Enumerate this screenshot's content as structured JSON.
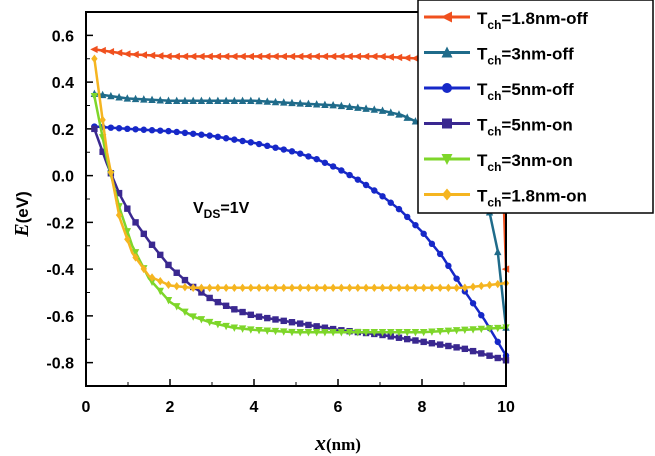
{
  "chart_data": {
    "type": "line",
    "xlabel": {
      "main": "x",
      "unit": "(nm)"
    },
    "ylabel": {
      "main": "E",
      "unit": "(eV)"
    },
    "xlim": [
      0,
      10
    ],
    "ylim": [
      -0.9,
      0.7
    ],
    "xticks": [
      0,
      2,
      4,
      6,
      8,
      10
    ],
    "yticks": [
      -0.8,
      -0.6,
      -0.4,
      -0.2,
      0.0,
      0.2,
      0.4,
      0.6
    ],
    "ytick_labels": [
      "-0.8",
      "-0.6",
      "-0.4",
      "-0.2",
      "0.0",
      "0.2",
      "0.4",
      "0.6"
    ],
    "annotation": {
      "main": "V",
      "sub": "DS",
      "rest": "=1V"
    },
    "legend_position": "top-right",
    "series": [
      {
        "name": {
          "main": "T",
          "sub": "ch",
          "rest": "=1.8nm-off"
        },
        "color": "#f0501e",
        "marker": "triangle-left",
        "x": [
          0.2,
          1,
          2,
          3,
          4,
          5,
          6,
          7,
          8,
          9,
          9.4,
          9.7,
          9.85,
          10
        ],
        "y": [
          0.54,
          0.52,
          0.51,
          0.51,
          0.51,
          0.51,
          0.51,
          0.51,
          0.5,
          0.48,
          0.46,
          0.44,
          0.4,
          -0.4
        ]
      },
      {
        "name": {
          "main": "T",
          "sub": "ch",
          "rest": "=3nm-off"
        },
        "color": "#1f6b8a",
        "marker": "triangle-up",
        "x": [
          0.2,
          1,
          2,
          3,
          4,
          5,
          6,
          7,
          7.5,
          8,
          8.5,
          9,
          9.3,
          9.6,
          9.8,
          10
        ],
        "y": [
          0.35,
          0.33,
          0.32,
          0.32,
          0.32,
          0.31,
          0.3,
          0.28,
          0.26,
          0.22,
          0.17,
          0.09,
          0.02,
          -0.15,
          -0.32,
          -0.65
        ]
      },
      {
        "name": {
          "main": "T",
          "sub": "ch",
          "rest": "=5nm-off"
        },
        "color": "#1628c8",
        "marker": "circle",
        "x": [
          0.2,
          1,
          2,
          3,
          4,
          5,
          5.5,
          6,
          6.5,
          7,
          7.5,
          8,
          8.5,
          9,
          9.5,
          10
        ],
        "y": [
          0.21,
          0.2,
          0.19,
          0.17,
          0.14,
          0.1,
          0.07,
          0.03,
          -0.02,
          -0.08,
          -0.15,
          -0.24,
          -0.35,
          -0.49,
          -0.62,
          -0.77
        ]
      },
      {
        "name": {
          "main": "T",
          "sub": "ch",
          "rest": "=5nm-on"
        },
        "color": "#3a2890",
        "marker": "square",
        "x": [
          0.2,
          0.5,
          0.8,
          1.1,
          1.5,
          2,
          2.5,
          3,
          3.5,
          4,
          5,
          6,
          7,
          8,
          9,
          10
        ],
        "y": [
          0.2,
          0.05,
          -0.08,
          -0.18,
          -0.28,
          -0.39,
          -0.47,
          -0.53,
          -0.57,
          -0.6,
          -0.63,
          -0.66,
          -0.68,
          -0.71,
          -0.74,
          -0.79
        ]
      },
      {
        "name": {
          "main": "T",
          "sub": "ch",
          "rest": "=3nm-on"
        },
        "color": "#7ed62a",
        "marker": "triangle-down",
        "x": [
          0.2,
          0.5,
          0.8,
          1.1,
          1.5,
          2,
          2.5,
          3,
          3.5,
          4,
          5,
          6,
          7,
          8,
          9,
          10
        ],
        "y": [
          0.34,
          0.07,
          -0.14,
          -0.3,
          -0.44,
          -0.54,
          -0.6,
          -0.63,
          -0.65,
          -0.66,
          -0.67,
          -0.67,
          -0.67,
          -0.67,
          -0.66,
          -0.65
        ]
      },
      {
        "name": {
          "main": "T",
          "sub": "ch",
          "rest": "=1.8nm-on"
        },
        "color": "#f5b520",
        "marker": "diamond",
        "x": [
          0.2,
          0.5,
          0.8,
          1.1,
          1.5,
          2,
          2.5,
          3,
          4,
          5,
          6,
          7,
          8,
          9,
          9.5,
          10
        ],
        "y": [
          0.5,
          0.1,
          -0.18,
          -0.33,
          -0.43,
          -0.47,
          -0.48,
          -0.48,
          -0.48,
          -0.48,
          -0.48,
          -0.48,
          -0.48,
          -0.48,
          -0.47,
          -0.46
        ]
      }
    ]
  }
}
